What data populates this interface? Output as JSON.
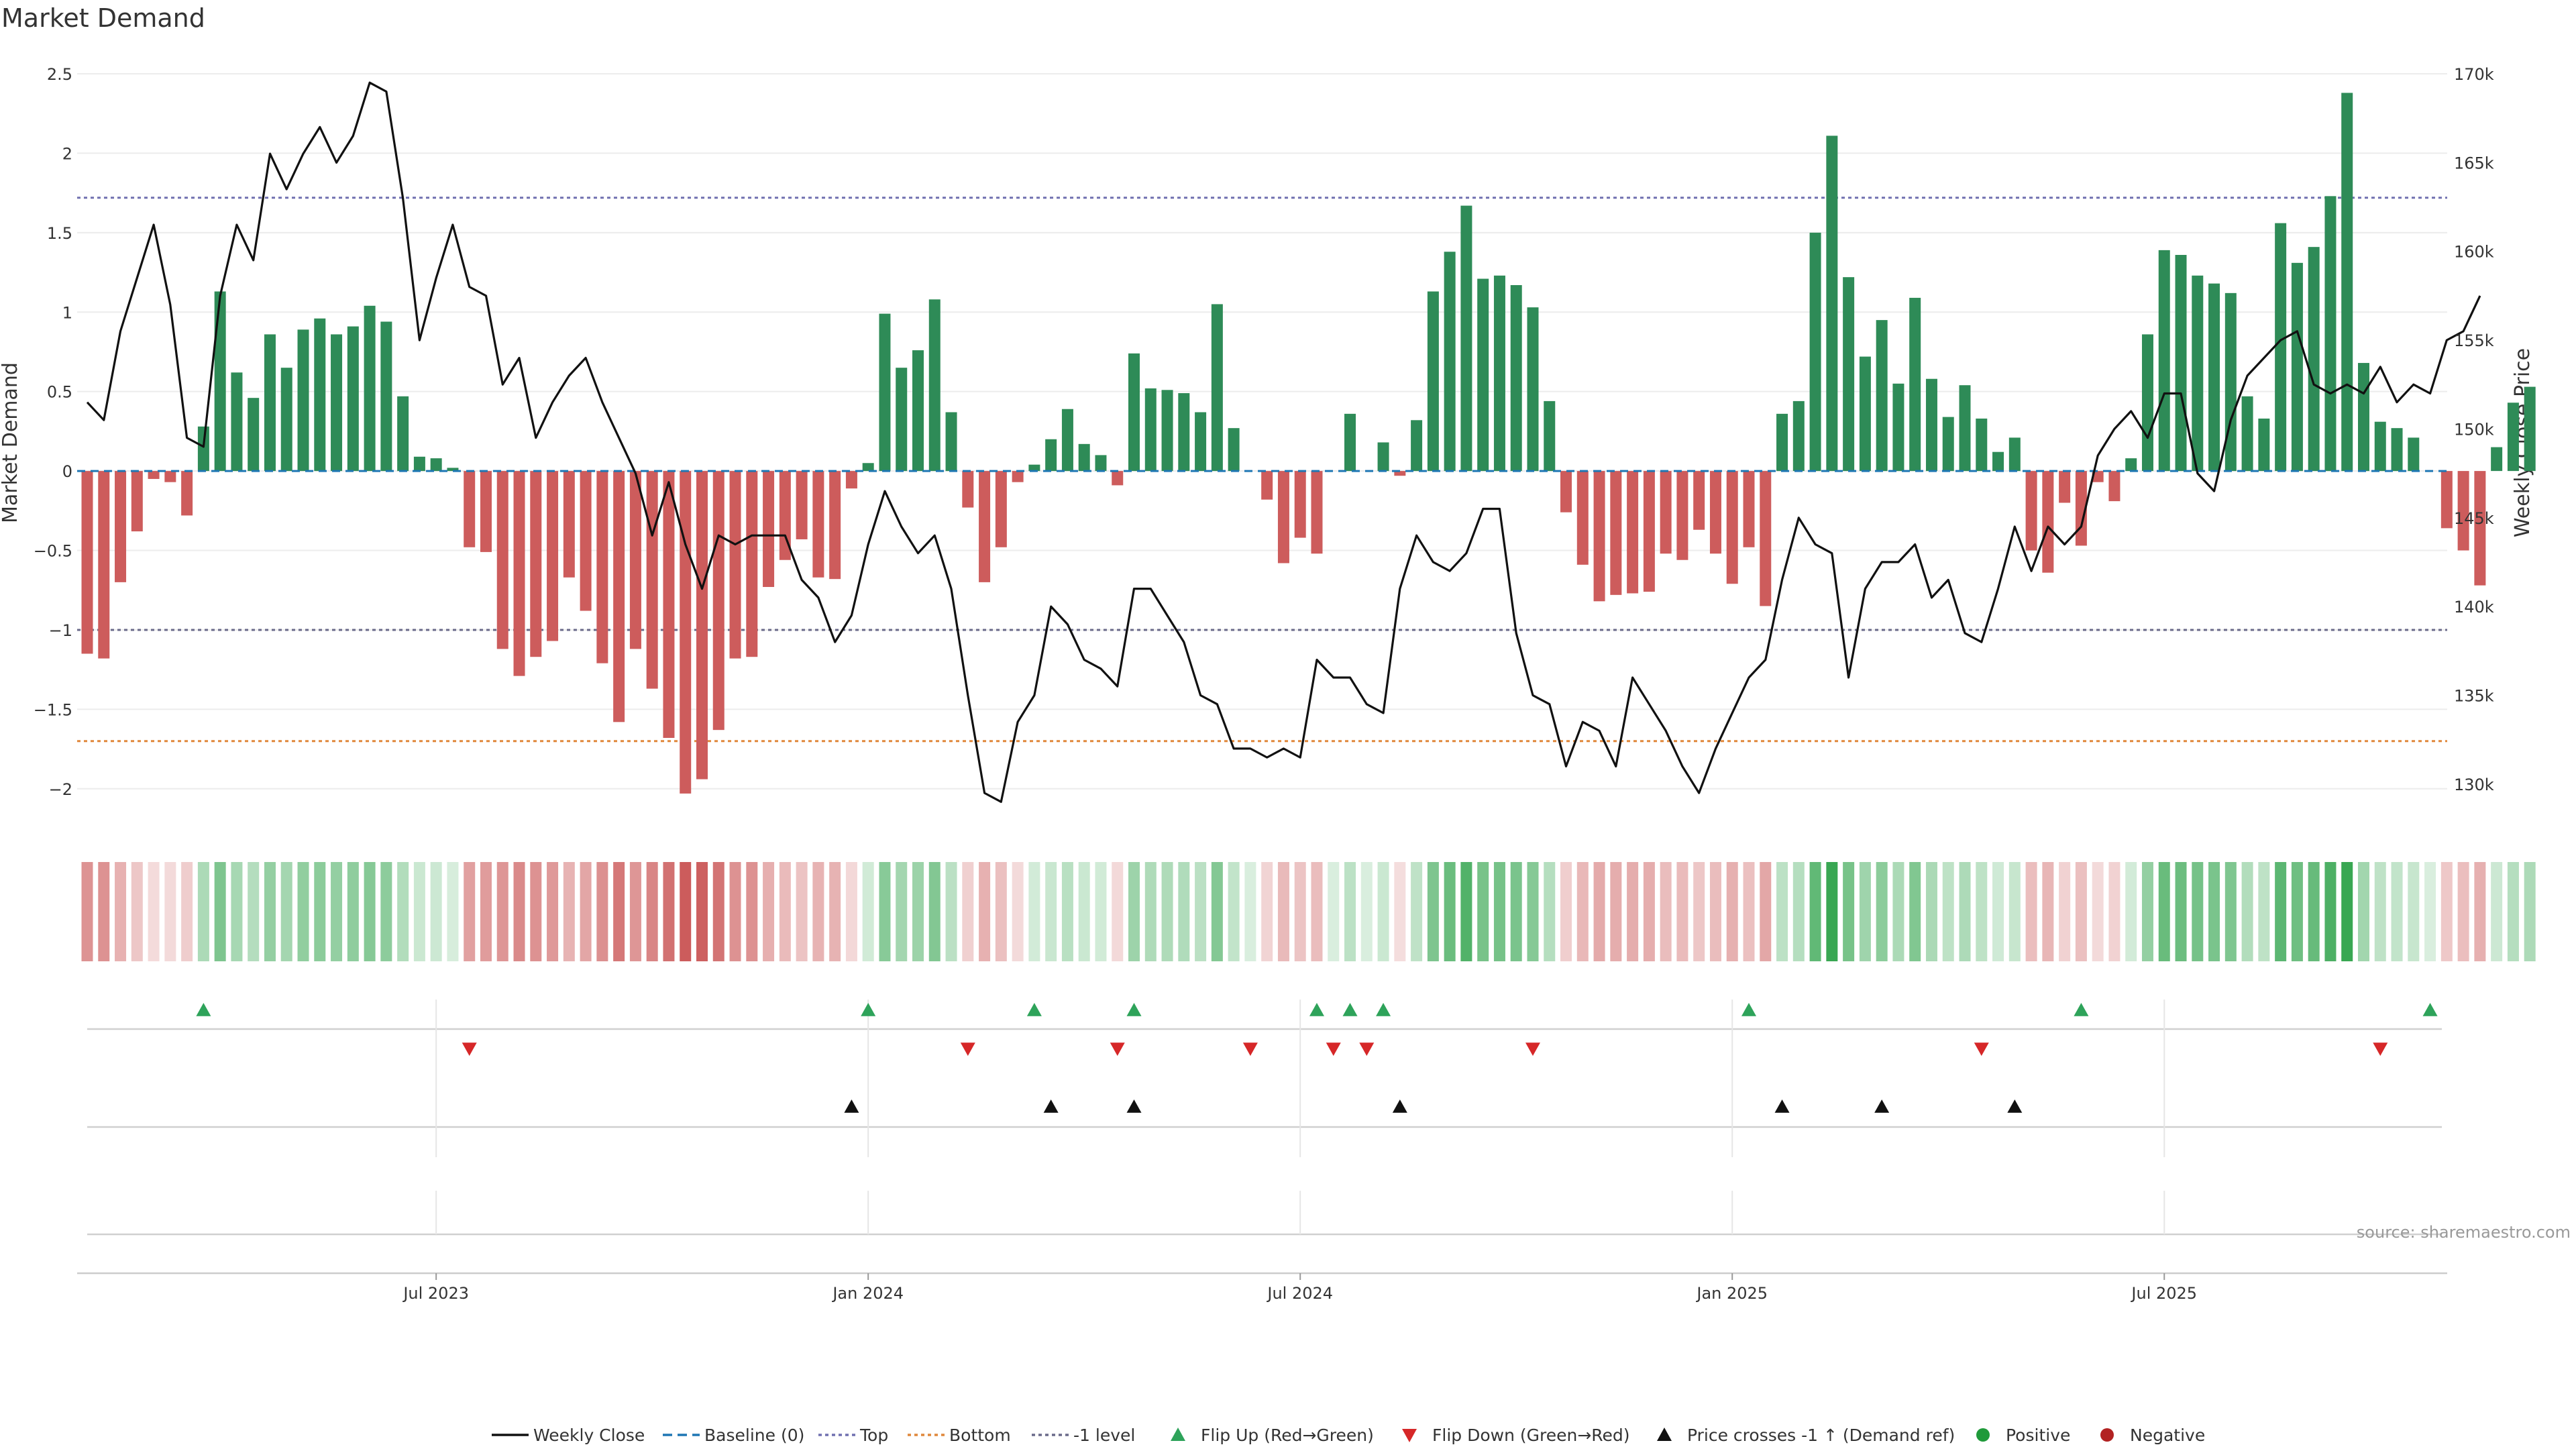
{
  "chart_data": {
    "type": "bar+line",
    "title": "Market Demand",
    "ylabel_left": "Market Demand",
    "ylabel_right": "Weekly Close Price",
    "ylim_left": [
      -2.25,
      2.5
    ],
    "ylim_right": [
      127.5,
      170
    ],
    "yticks_left": [
      {
        "v": 2.5,
        "label": "2.5"
      },
      {
        "v": 2,
        "label": "2"
      },
      {
        "v": 1.5,
        "label": "1.5"
      },
      {
        "v": 1,
        "label": "1"
      },
      {
        "v": 0.5,
        "label": "0.5"
      },
      {
        "v": 0,
        "label": "0"
      },
      {
        "v": -0.5,
        "label": "−0.5"
      },
      {
        "v": -1,
        "label": "−1"
      },
      {
        "v": -1.5,
        "label": "−1.5"
      },
      {
        "v": -2,
        "label": "−2"
      }
    ],
    "yticks_right": [
      {
        "v": 170,
        "label": "170k"
      },
      {
        "v": 165,
        "label": "165k"
      },
      {
        "v": 160,
        "label": "160k"
      },
      {
        "v": 155,
        "label": "155k"
      },
      {
        "v": 150,
        "label": "150k"
      },
      {
        "v": 145,
        "label": "145k"
      },
      {
        "v": 140,
        "label": "140k"
      },
      {
        "v": 135,
        "label": "135k"
      },
      {
        "v": 130,
        "label": "130k"
      }
    ],
    "x_ticks": [
      {
        "index": 21,
        "label": "Jul 2023"
      },
      {
        "index": 47,
        "label": "Jan 2024"
      },
      {
        "index": 73,
        "label": "Jul 2024"
      },
      {
        "index": 99,
        "label": "Jan 2025"
      },
      {
        "index": 125,
        "label": "Jul 2025"
      }
    ],
    "reference_lines": {
      "top": 1.72,
      "bottom": -1.7,
      "minus_one": -1.0,
      "baseline": 0
    },
    "demand": [
      -1.15,
      -1.18,
      -0.7,
      -0.38,
      -0.05,
      -0.07,
      -0.28,
      0.28,
      1.13,
      0.62,
      0.46,
      0.86,
      0.65,
      0.89,
      0.96,
      0.86,
      0.91,
      1.04,
      0.94,
      0.47,
      0.09,
      0.08,
      0.02,
      -0.48,
      -0.51,
      -1.12,
      -1.29,
      -1.17,
      -1.07,
      -0.67,
      -0.88,
      -1.21,
      -1.58,
      -1.12,
      -1.37,
      -1.68,
      -2.03,
      -1.94,
      -1.63,
      -1.18,
      -1.17,
      -0.73,
      -0.56,
      -0.43,
      -0.67,
      -0.68,
      -0.11,
      0.05,
      0.99,
      0.65,
      0.76,
      1.08,
      0.37,
      -0.23,
      -0.7,
      -0.48,
      -0.07,
      0.04,
      0.2,
      0.39,
      0.17,
      0.1,
      -0.09,
      0.74,
      0.52,
      0.51,
      0.49,
      0.37,
      1.05,
      0.27,
      0.0,
      -0.18,
      -0.58,
      -0.42,
      -0.52,
      0.0,
      0.36,
      0.0,
      0.18,
      -0.03,
      0.32,
      1.13,
      1.38,
      1.67,
      1.21,
      1.23,
      1.17,
      1.03,
      0.44,
      -0.26,
      -0.59,
      -0.82,
      -0.78,
      -0.77,
      -0.76,
      -0.52,
      -0.56,
      -0.37,
      -0.52,
      -0.71,
      -0.48,
      -0.85,
      0.36,
      0.44,
      1.5,
      2.11,
      1.22,
      0.72,
      0.95,
      0.55,
      1.09,
      0.58,
      0.34,
      0.54,
      0.33,
      0.12,
      0.21,
      -0.5,
      -0.64,
      -0.2,
      -0.47,
      -0.07,
      -0.19,
      0.08,
      0.86,
      1.39,
      1.36,
      1.23,
      1.18,
      1.12,
      0.47,
      0.33,
      1.56,
      1.31,
      1.41,
      1.73,
      2.38,
      0.68,
      0.31,
      0.27,
      0.21,
      0.0,
      -0.36,
      -0.5,
      -0.72,
      0.15,
      0.43,
      0.53
    ],
    "close": [
      151.5,
      150.5,
      155.5,
      158.5,
      161.5,
      157,
      149.5,
      149,
      157.5,
      161.5,
      159.5,
      165.5,
      163.5,
      165.5,
      167,
      165,
      166.5,
      169.5,
      169,
      163,
      155,
      158.5,
      161.5,
      158,
      157.5,
      152.5,
      154,
      149.5,
      151.5,
      153,
      154,
      151.5,
      149.5,
      147.5,
      144,
      147,
      143.5,
      141,
      144,
      143.5,
      144,
      144,
      144,
      141.5,
      140.5,
      138,
      139.5,
      143.5,
      146.5,
      144.5,
      143,
      144,
      141,
      135,
      129.5,
      129,
      133.5,
      135,
      140,
      139,
      137,
      136.5,
      135.5,
      141,
      141,
      139.5,
      138,
      135,
      134.5,
      132,
      132,
      131.5,
      132,
      131.5,
      137,
      136,
      136,
      134.5,
      134,
      141,
      144,
      142.5,
      142,
      143,
      145.5,
      145.5,
      138.5,
      135,
      134.5,
      131,
      133.5,
      133,
      131,
      136,
      134.5,
      133,
      131,
      129.5,
      132,
      134,
      136,
      137,
      141.5,
      145,
      143.5,
      143,
      136,
      141,
      142.5,
      142.5,
      143.5,
      140.5,
      141.5,
      138.5,
      138,
      141,
      144.5,
      142,
      144.5,
      143.5,
      144.5,
      148.5,
      150,
      151,
      149.5,
      152,
      152,
      147.5,
      146.5,
      150.5,
      153,
      154,
      155,
      155.5,
      152.5,
      152,
      152.5,
      152,
      153.5,
      151.5,
      152.5,
      152,
      155,
      155.5,
      157.5
    ],
    "heat_strip": [
      -0.58,
      -0.59,
      -0.35,
      -0.19,
      -0.03,
      -0.04,
      -0.14,
      0.28,
      0.57,
      0.31,
      0.23,
      0.43,
      0.33,
      0.45,
      0.48,
      0.43,
      0.46,
      0.52,
      0.47,
      0.24,
      0.09,
      0.08,
      0.01,
      -0.48,
      -0.51,
      -0.56,
      -0.65,
      -0.59,
      -0.54,
      -0.34,
      -0.44,
      -0.61,
      -0.79,
      -0.56,
      -0.69,
      -0.84,
      -1.0,
      -0.97,
      -0.82,
      -0.59,
      -0.59,
      -0.37,
      -0.28,
      -0.22,
      -0.34,
      -0.34,
      -0.06,
      0.05,
      0.5,
      0.33,
      0.38,
      0.54,
      0.19,
      -0.12,
      -0.35,
      -0.24,
      -0.04,
      0.04,
      0.1,
      0.2,
      0.09,
      0.05,
      -0.05,
      0.37,
      0.26,
      0.26,
      0.25,
      0.19,
      0.53,
      0.14,
      0.0,
      -0.09,
      -0.29,
      -0.21,
      -0.26,
      0.0,
      0.18,
      0.0,
      0.09,
      -0.02,
      0.16,
      0.57,
      0.69,
      0.84,
      0.61,
      0.62,
      0.59,
      0.52,
      0.22,
      -0.13,
      -0.3,
      -0.41,
      -0.39,
      -0.39,
      -0.38,
      -0.26,
      -0.28,
      -0.19,
      -0.26,
      -0.36,
      -0.24,
      -0.43,
      0.18,
      0.22,
      0.75,
      1.0,
      0.61,
      0.36,
      0.48,
      0.28,
      0.55,
      0.29,
      0.17,
      0.27,
      0.17,
      0.06,
      0.11,
      -0.25,
      -0.32,
      -0.1,
      -0.24,
      -0.04,
      -0.1,
      0.04,
      0.43,
      0.7,
      0.68,
      0.62,
      0.59,
      0.56,
      0.24,
      0.17,
      0.78,
      0.66,
      0.71,
      0.87,
      1.0,
      0.34,
      0.16,
      0.14,
      0.11,
      0.0,
      -0.18,
      -0.25,
      -0.36,
      0.08,
      0.22,
      0.27
    ],
    "events": {
      "flip_up": [
        7,
        47,
        57,
        63,
        74,
        76,
        78,
        100,
        120,
        141
      ],
      "flip_down": [
        23,
        53,
        62,
        70,
        75,
        77,
        87,
        114,
        138
      ],
      "price_cross": [
        46,
        58,
        63,
        79,
        102,
        108,
        116
      ]
    },
    "source": "source: sharemaestro.com",
    "legend": [
      {
        "key": "weekly_close",
        "label": "Weekly Close"
      },
      {
        "key": "baseline",
        "label": "Baseline (0)"
      },
      {
        "key": "top",
        "label": "Top"
      },
      {
        "key": "bottom",
        "label": "Bottom"
      },
      {
        "key": "minus_one",
        "label": "-1 level"
      },
      {
        "key": "flip_up",
        "label": "Flip Up (Red→Green)"
      },
      {
        "key": "flip_down",
        "label": "Flip Down (Green→Red)"
      },
      {
        "key": "price_cross",
        "label": "Price crosses -1 ↑ (Demand ref)"
      },
      {
        "key": "positive",
        "label": "Positive"
      },
      {
        "key": "negative",
        "label": "Negative"
      }
    ],
    "colors": {
      "positive": "#2e8b57",
      "negative": "#cd5c5c",
      "close": "#111111",
      "baseline": "#1f77b4",
      "top": "#7070b0",
      "bottom": "#e0883c",
      "minus_one": "#6a6a8a",
      "flip_up": "#2ea35a",
      "flip_down": "#d62728",
      "cross": "#111111",
      "grid": "#ececec",
      "rule": "#d0d0d0",
      "pos_dot": "#1f9a3a",
      "neg_dot": "#b22222"
    }
  }
}
